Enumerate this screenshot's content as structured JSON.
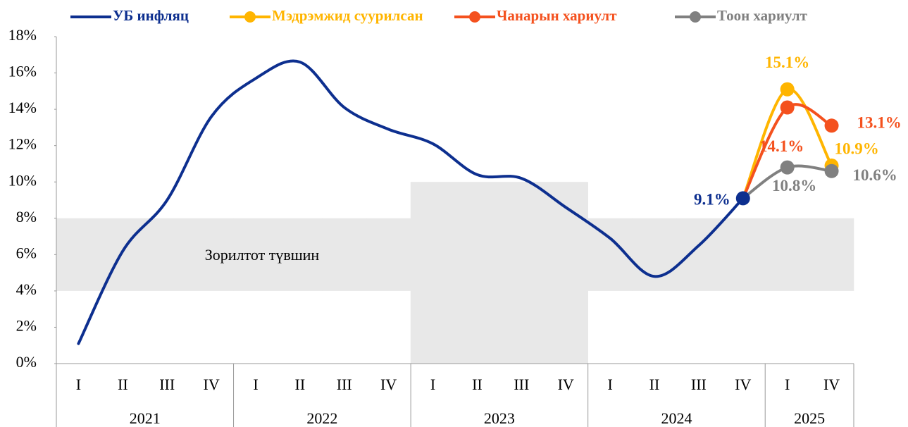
{
  "chart_data": {
    "type": "line",
    "categories": [
      "I",
      "II",
      "III",
      "IV",
      "I",
      "II",
      "III",
      "IV",
      "I",
      "II",
      "III",
      "IV",
      "I",
      "II",
      "III",
      "IV",
      "I",
      "IV"
    ],
    "x_groups": [
      {
        "label": "2021",
        "span": 4
      },
      {
        "label": "2022",
        "span": 4
      },
      {
        "label": "2023",
        "span": 4
      },
      {
        "label": "2024",
        "span": 4
      },
      {
        "label": "2025",
        "span": 2
      }
    ],
    "ylim": [
      0,
      18
    ],
    "yticks": [
      {
        "value": 0,
        "label": "0%"
      },
      {
        "value": 2,
        "label": "2%"
      },
      {
        "value": 4,
        "label": "4%"
      },
      {
        "value": 6,
        "label": "6%"
      },
      {
        "value": 8,
        "label": "8%"
      },
      {
        "value": 10,
        "label": "10%"
      },
      {
        "value": 12,
        "label": "12%"
      },
      {
        "value": 14,
        "label": "14%"
      },
      {
        "value": 16,
        "label": "16%"
      },
      {
        "value": 18,
        "label": "18%"
      }
    ],
    "target_band": {
      "label": "Зорилтот түвшин",
      "color": "#e8e8e8",
      "lower": [
        4,
        4,
        4,
        4,
        4,
        4,
        4,
        4,
        0,
        0,
        0,
        0,
        4,
        4,
        4,
        4,
        4,
        4
      ],
      "upper": [
        8,
        8,
        8,
        8,
        8,
        8,
        8,
        8,
        10,
        10,
        10,
        10,
        8,
        8,
        8,
        8,
        8,
        8
      ]
    },
    "series": [
      {
        "name": "УБ инфляц",
        "color": "#0d2f8f",
        "marker": false,
        "values": [
          1.1,
          6.2,
          9.0,
          13.6,
          15.7,
          16.6,
          14.1,
          12.9,
          12.1,
          10.4,
          10.2,
          8.6,
          6.9,
          4.8,
          6.5,
          9.1,
          null,
          null
        ],
        "value_labels": [
          null,
          null,
          null,
          null,
          null,
          null,
          null,
          null,
          null,
          null,
          null,
          null,
          null,
          null,
          null,
          "9.1%",
          null,
          null
        ]
      },
      {
        "name": "Мэдрэмжид суурилсан",
        "color": "#ffb500",
        "marker": true,
        "values": [
          null,
          null,
          null,
          null,
          null,
          null,
          null,
          null,
          null,
          null,
          null,
          null,
          null,
          null,
          null,
          9.1,
          15.1,
          10.9
        ],
        "value_labels": [
          null,
          null,
          null,
          null,
          null,
          null,
          null,
          null,
          null,
          null,
          null,
          null,
          null,
          null,
          null,
          null,
          "15.1%",
          "10.9%"
        ]
      },
      {
        "name": "Чанарын хариулт",
        "color": "#f4511e",
        "marker": true,
        "values": [
          null,
          null,
          null,
          null,
          null,
          null,
          null,
          null,
          null,
          null,
          null,
          null,
          null,
          null,
          null,
          9.1,
          14.1,
          13.1
        ],
        "value_labels": [
          null,
          null,
          null,
          null,
          null,
          null,
          null,
          null,
          null,
          null,
          null,
          null,
          null,
          null,
          null,
          null,
          "14.1%",
          "13.1%"
        ]
      },
      {
        "name": "Тоон хариулт",
        "color": "#808080",
        "marker": true,
        "values": [
          null,
          null,
          null,
          null,
          null,
          null,
          null,
          null,
          null,
          null,
          null,
          null,
          null,
          null,
          null,
          9.1,
          10.8,
          10.6
        ],
        "value_labels": [
          null,
          null,
          null,
          null,
          null,
          null,
          null,
          null,
          null,
          null,
          null,
          null,
          null,
          null,
          null,
          null,
          "10.8%",
          "10.6%"
        ]
      }
    ]
  }
}
